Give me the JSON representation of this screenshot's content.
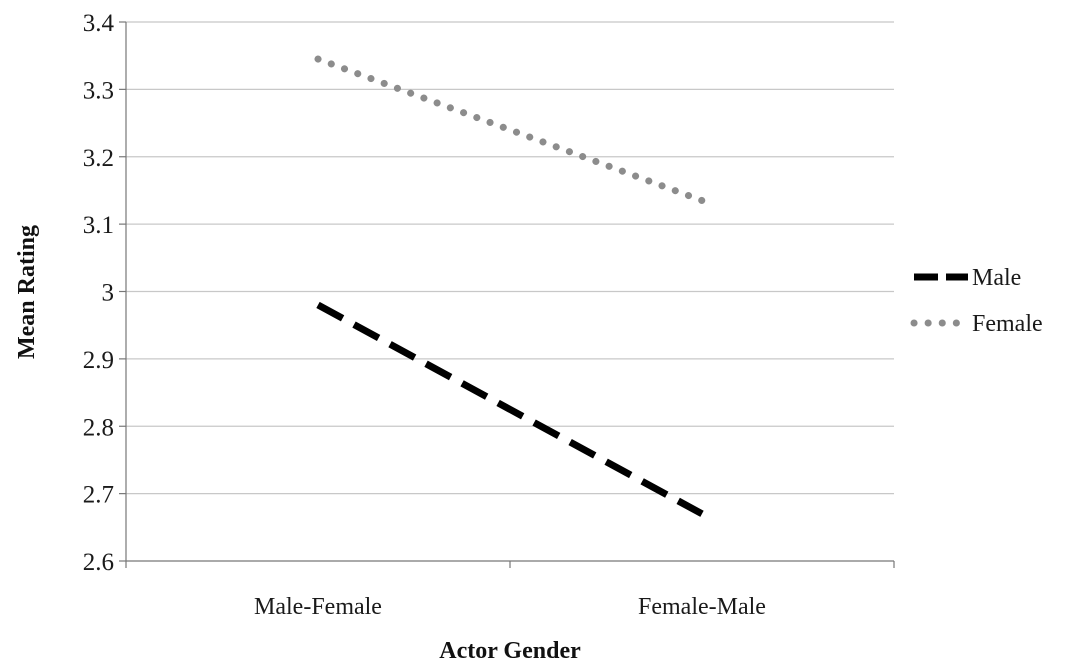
{
  "chart_data": {
    "type": "line",
    "title": "",
    "xlabel": "Actor Gender",
    "ylabel": "Mean Rating",
    "categories": [
      "Male-Female",
      "Female-Male"
    ],
    "ylim": [
      2.6,
      3.4
    ],
    "yticks": [
      2.6,
      2.7,
      2.8,
      2.9,
      3.0,
      3.1,
      3.2,
      3.3,
      3.4
    ],
    "ytick_labels": [
      "2.6",
      "2.7",
      "2.8",
      "2.9",
      "3",
      "3.1",
      "3.2",
      "3.3",
      "3.4"
    ],
    "grid": true,
    "legend": "right",
    "series": [
      {
        "name": "Male",
        "values": [
          2.98,
          2.67
        ],
        "color": "#000000",
        "style": "dashed"
      },
      {
        "name": "Female",
        "values": [
          3.345,
          3.135
        ],
        "color": "#8c8c8c",
        "style": "dotted"
      }
    ]
  }
}
